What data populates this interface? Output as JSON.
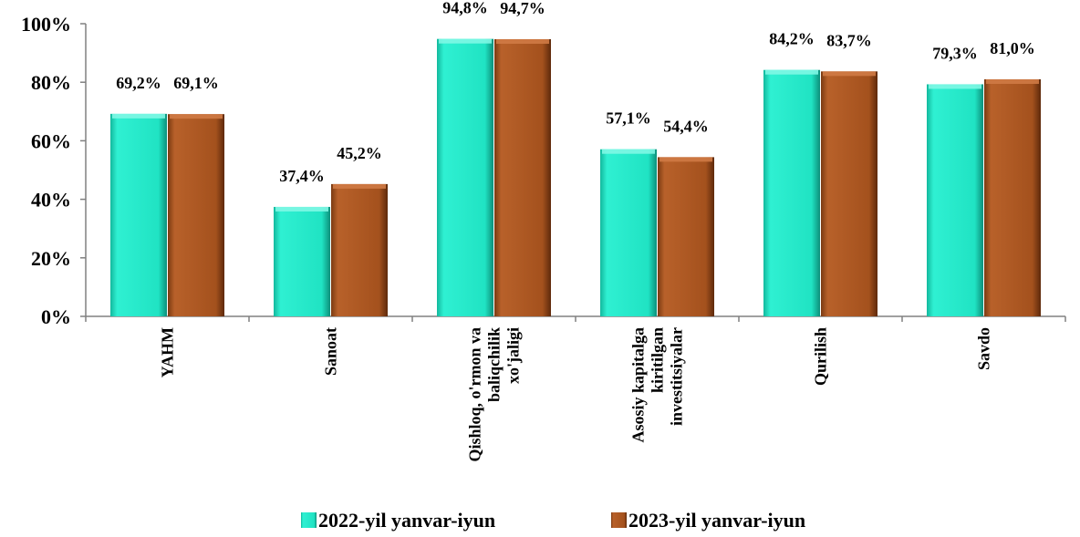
{
  "chart_data": {
    "type": "bar",
    "categories": [
      [
        "YAHM"
      ],
      [
        "Sanoat"
      ],
      [
        "Qishloq, o'rmon va",
        "baliqchilik",
        "xo'jaligi"
      ],
      [
        "Asosiy kapitalga",
        "kiritilgan",
        "investitsiyalar"
      ],
      [
        "Qurilish"
      ],
      [
        "Savdo"
      ]
    ],
    "series": [
      {
        "name": "2022-yil yanvar-iyun",
        "values": [
          69.2,
          37.4,
          94.8,
          57.1,
          84.2,
          79.3
        ],
        "labels": [
          "69,2%",
          "37,4%",
          "94,8%",
          "57,1%",
          "84,2%",
          "79,3%"
        ],
        "color": "#1de9c8"
      },
      {
        "name": "2023-yil yanvar-iyun",
        "values": [
          69.1,
          45.2,
          94.7,
          54.4,
          83.7,
          81.0
        ],
        "labels": [
          "69,1%",
          "45,2%",
          "94,7%",
          "54,4%",
          "83,7%",
          "81,0%"
        ],
        "color": "#a8521e"
      }
    ],
    "ylim": [
      0,
      100
    ],
    "yticks": [
      0,
      20,
      40,
      60,
      80,
      100
    ],
    "ytick_labels": [
      "0%",
      "20%",
      "40%",
      "60%",
      "80%",
      "100%"
    ],
    "grid": false,
    "legend_position": "bottom"
  }
}
